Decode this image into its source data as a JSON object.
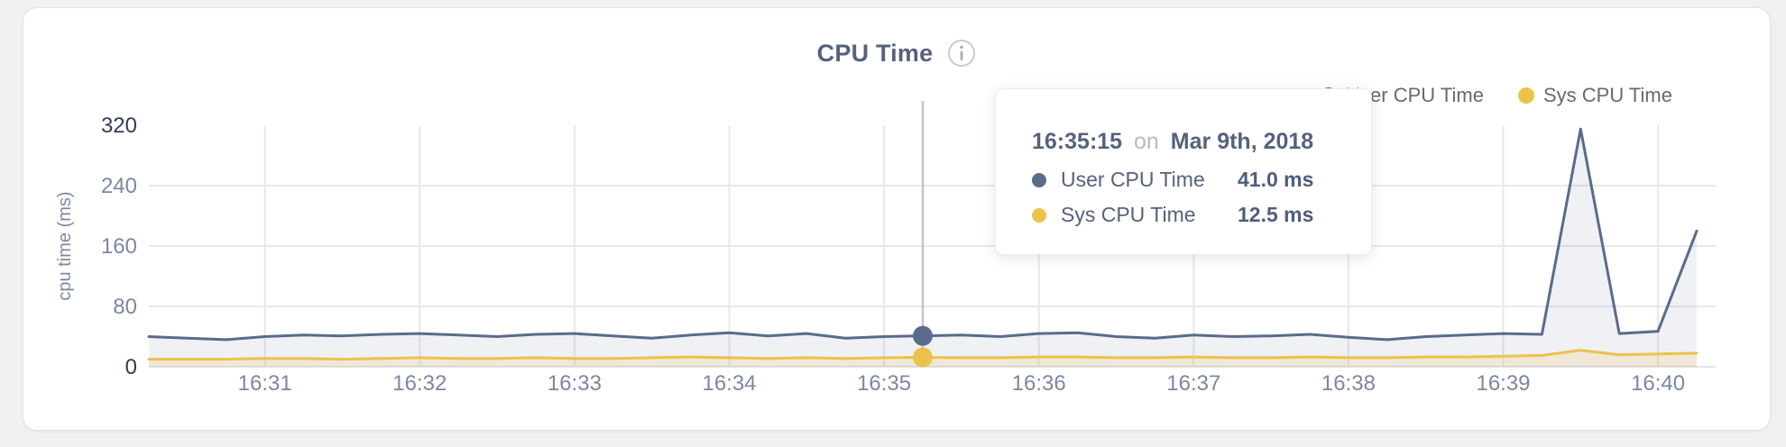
{
  "header": {
    "title": "CPU Time"
  },
  "tooltip": {
    "time": "16:35:15",
    "conjunction": "on",
    "date": "Mar 9th, 2018",
    "rows": [
      {
        "series": "User CPU Time",
        "value": "41.0 ms"
      },
      {
        "series": "Sys CPU Time",
        "value": "12.5 ms"
      }
    ]
  },
  "chart_data": {
    "type": "area",
    "title": "CPU Time",
    "xlabel": "",
    "ylabel": "cpu time (ms)",
    "ylim": [
      0,
      320
    ],
    "yticks": [
      0,
      80,
      160,
      240,
      320
    ],
    "xticks": [
      "16:31",
      "16:32",
      "16:33",
      "16:34",
      "16:35",
      "16:36",
      "16:37",
      "16:38",
      "16:39",
      "16:40"
    ],
    "grid": true,
    "legend_position": "top-right",
    "hover": {
      "time": "16:35:15"
    },
    "x": [
      "16:30:15",
      "16:30:30",
      "16:30:45",
      "16:31:00",
      "16:31:15",
      "16:31:30",
      "16:31:45",
      "16:32:00",
      "16:32:15",
      "16:32:30",
      "16:32:45",
      "16:33:00",
      "16:33:15",
      "16:33:30",
      "16:33:45",
      "16:34:00",
      "16:34:15",
      "16:34:30",
      "16:34:45",
      "16:35:00",
      "16:35:15",
      "16:35:30",
      "16:35:45",
      "16:36:00",
      "16:36:15",
      "16:36:30",
      "16:36:45",
      "16:37:00",
      "16:37:15",
      "16:37:30",
      "16:37:45",
      "16:38:00",
      "16:38:15",
      "16:38:30",
      "16:38:45",
      "16:39:00",
      "16:39:15",
      "16:39:30",
      "16:39:45",
      "16:40:00",
      "16:40:15"
    ],
    "series": [
      {
        "name": "User CPU Time",
        "color": "#5a6b8c",
        "fill": "rgba(99,114,148,0.10)",
        "values": [
          40,
          38,
          36,
          40,
          42,
          41,
          43,
          44,
          42,
          40,
          43,
          44,
          41,
          38,
          42,
          45,
          41,
          44,
          38,
          40,
          41,
          42,
          40,
          44,
          45,
          40,
          38,
          42,
          40,
          41,
          43,
          39,
          36,
          40,
          42,
          44,
          43,
          315,
          44,
          47,
          180
        ]
      },
      {
        "name": "Sys CPU Time",
        "color": "#ecc24b",
        "fill": "rgba(236,196,80,0.18)",
        "values": [
          10,
          10,
          10,
          11,
          11,
          10,
          11,
          12,
          11,
          11,
          12,
          11,
          11,
          12,
          13,
          12,
          11,
          12,
          11,
          12,
          12.5,
          12,
          12,
          13,
          13,
          12,
          12,
          13,
          12,
          12,
          13,
          12,
          12,
          13,
          13,
          14,
          15,
          22,
          16,
          17,
          18
        ]
      }
    ]
  }
}
